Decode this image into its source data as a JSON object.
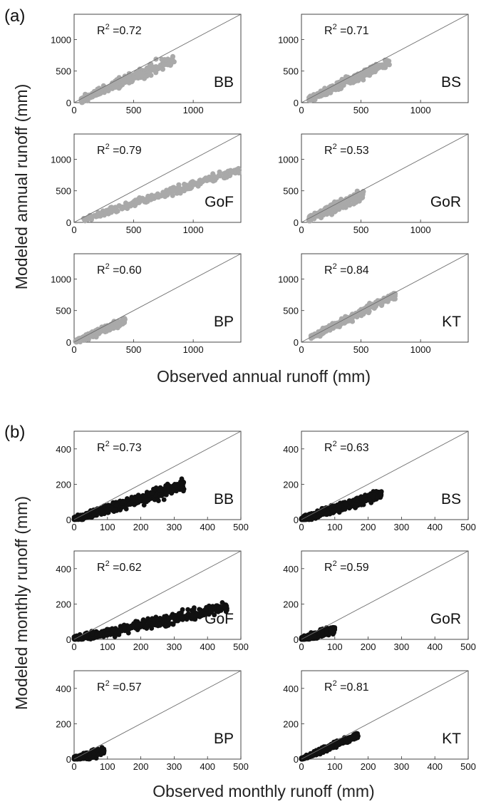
{
  "panels": [
    {
      "label": "(a)",
      "xlabel": "Observed annual runoff (mm)",
      "ylabel": "Modeled annual runoff (mm)",
      "point_color": "#a9a9a9"
    },
    {
      "label": "(b)",
      "xlabel": "Observed monthly runoff (mm)",
      "ylabel": "Modeled monthly runoff (mm)",
      "point_color": "#111111"
    }
  ],
  "chart_data": [
    {
      "type": "scatter",
      "group": "a",
      "site": "BB",
      "r2_prefix": "R",
      "r2_exp": "2",
      "r2_value": "=0.72",
      "xlim": [
        0,
        1400
      ],
      "ylim": [
        0,
        1400
      ],
      "xticks": [
        0,
        500,
        1000
      ],
      "yticks": [
        0,
        500,
        1000
      ],
      "x_range": [
        60,
        840
      ],
      "slope": 0.82,
      "spread": 80
    },
    {
      "type": "scatter",
      "group": "a",
      "site": "BS",
      "r2_prefix": "R",
      "r2_exp": "2",
      "r2_value": "=0.71",
      "xlim": [
        0,
        1400
      ],
      "ylim": [
        0,
        1400
      ],
      "xticks": [
        0,
        500,
        1000
      ],
      "yticks": [
        0,
        500,
        1000
      ],
      "x_range": [
        60,
        740
      ],
      "slope": 0.86,
      "spread": 70
    },
    {
      "type": "scatter",
      "group": "a",
      "site": "GoF",
      "r2_prefix": "R",
      "r2_exp": "2",
      "r2_value": "=0.79",
      "xlim": [
        0,
        1400
      ],
      "ylim": [
        0,
        1400
      ],
      "xticks": [
        0,
        500,
        1000
      ],
      "yticks": [
        0,
        500,
        1000
      ],
      "x_range": [
        80,
        1400
      ],
      "slope": 0.6,
      "spread": 60
    },
    {
      "type": "scatter",
      "group": "a",
      "site": "GoR",
      "r2_prefix": "R",
      "r2_exp": "2",
      "r2_value": "=0.53",
      "xlim": [
        0,
        1400
      ],
      "ylim": [
        0,
        1400
      ],
      "xticks": [
        0,
        500,
        1000
      ],
      "yticks": [
        0,
        500,
        1000
      ],
      "x_range": [
        60,
        520
      ],
      "slope": 0.85,
      "spread": 70
    },
    {
      "type": "scatter",
      "group": "a",
      "site": "BP",
      "r2_prefix": "R",
      "r2_exp": "2",
      "r2_value": "=0.60",
      "xlim": [
        0,
        1400
      ],
      "ylim": [
        0,
        1400
      ],
      "xticks": [
        0,
        500,
        1000
      ],
      "yticks": [
        0,
        500,
        1000
      ],
      "x_range": [
        10,
        430
      ],
      "slope": 0.8,
      "spread": 50
    },
    {
      "type": "scatter",
      "group": "a",
      "site": "KT",
      "r2_prefix": "R",
      "r2_exp": "2",
      "r2_value": "=0.84",
      "xlim": [
        0,
        1400
      ],
      "ylim": [
        0,
        1400
      ],
      "xticks": [
        0,
        500,
        1000
      ],
      "yticks": [
        0,
        500,
        1000
      ],
      "x_range": [
        80,
        790
      ],
      "slope": 0.95,
      "spread": 55
    },
    {
      "type": "scatter",
      "group": "b",
      "site": "BB",
      "r2_prefix": "R",
      "r2_exp": "2",
      "r2_value": "=0.73",
      "xlim": [
        0,
        500
      ],
      "ylim": [
        0,
        500
      ],
      "xticks": [
        0,
        100,
        200,
        300,
        400,
        500
      ],
      "yticks": [
        0,
        200,
        400
      ],
      "x_range": [
        0,
        330
      ],
      "slope": 0.6,
      "spread": 30
    },
    {
      "type": "scatter",
      "group": "b",
      "site": "BS",
      "r2_prefix": "R",
      "r2_exp": "2",
      "r2_value": "=0.63",
      "xlim": [
        0,
        500
      ],
      "ylim": [
        0,
        500
      ],
      "xticks": [
        0,
        100,
        200,
        300,
        400,
        500
      ],
      "yticks": [
        0,
        200,
        400
      ],
      "x_range": [
        0,
        240
      ],
      "slope": 0.6,
      "spread": 25
    },
    {
      "type": "scatter",
      "group": "b",
      "site": "GoF",
      "r2_prefix": "R",
      "r2_exp": "2",
      "r2_value": "=0.62",
      "xlim": [
        0,
        500
      ],
      "ylim": [
        0,
        500
      ],
      "xticks": [
        0,
        100,
        200,
        300,
        400,
        500
      ],
      "yticks": [
        0,
        200,
        400
      ],
      "x_range": [
        0,
        460
      ],
      "slope": 0.4,
      "spread": 30
    },
    {
      "type": "scatter",
      "group": "b",
      "site": "GoR",
      "r2_prefix": "R",
      "r2_exp": "2",
      "r2_value": "=0.59",
      "xlim": [
        0,
        500
      ],
      "ylim": [
        0,
        500
      ],
      "xticks": [
        0,
        100,
        200,
        300,
        400,
        500
      ],
      "yticks": [
        0,
        200,
        400
      ],
      "x_range": [
        0,
        100
      ],
      "slope": 0.55,
      "spread": 20
    },
    {
      "type": "scatter",
      "group": "b",
      "site": "BP",
      "r2_prefix": "R",
      "r2_exp": "2",
      "r2_value": "=0.57",
      "xlim": [
        0,
        500
      ],
      "ylim": [
        0,
        500
      ],
      "xticks": [
        0,
        100,
        200,
        300,
        400,
        500
      ],
      "yticks": [
        0,
        200,
        400
      ],
      "x_range": [
        0,
        90
      ],
      "slope": 0.5,
      "spread": 18
    },
    {
      "type": "scatter",
      "group": "b",
      "site": "KT",
      "r2_prefix": "R",
      "r2_exp": "2",
      "r2_value": "=0.81",
      "xlim": [
        0,
        500
      ],
      "ylim": [
        0,
        500
      ],
      "xticks": [
        0,
        100,
        200,
        300,
        400,
        500
      ],
      "yticks": [
        0,
        200,
        400
      ],
      "x_range": [
        0,
        170
      ],
      "slope": 0.8,
      "spread": 15
    }
  ]
}
